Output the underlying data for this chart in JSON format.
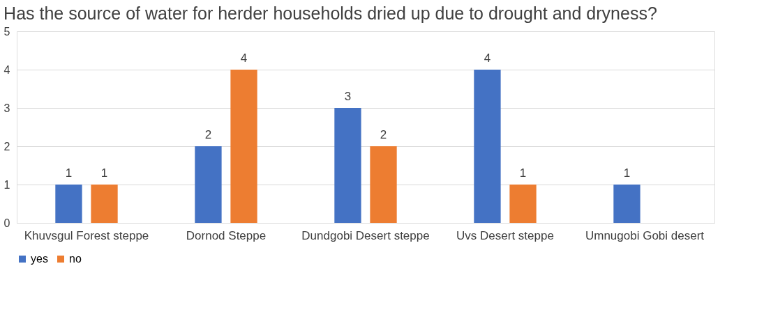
{
  "chart_data": {
    "type": "bar",
    "title": "Has the source of water for herder households dried up due to drought and dryness?",
    "categories": [
      "Khuvsgul Forest steppe",
      "Dornod Steppe",
      "Dundgobi Desert steppe",
      "Uvs Desert steppe",
      "Umnugobi Gobi desert"
    ],
    "series": [
      {
        "name": "yes",
        "color": "#4472c4",
        "values": [
          1,
          2,
          3,
          4,
          1
        ]
      },
      {
        "name": "no",
        "color": "#ed7d31",
        "values": [
          1,
          4,
          2,
          1,
          null
        ]
      }
    ],
    "ylim": [
      0,
      5
    ],
    "yticks": [
      0,
      1,
      2,
      3,
      4,
      5
    ],
    "grid": "y",
    "legend": "bottom",
    "data_labels": true
  }
}
